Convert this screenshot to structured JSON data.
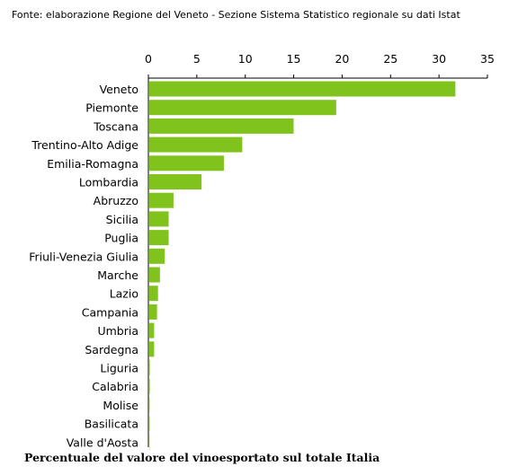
{
  "source_note": "Fonte: elaborazione Regione del Veneto - Sezione Sistema Statistico regionale su dati Istat",
  "caption": "Percentuale del valore del vinoesportato sul totale Italia",
  "colors": {
    "bar": "#7fc31c",
    "axis": "#000000"
  },
  "chart_data": {
    "type": "bar",
    "orientation": "horizontal",
    "title": "",
    "xlabel": "",
    "ylabel": "",
    "xlim": [
      0,
      35
    ],
    "xticks": [
      0,
      5,
      10,
      15,
      20,
      25,
      30,
      35
    ],
    "xaxis_position": "top",
    "grid": false,
    "categories": [
      "Veneto",
      "Piemonte",
      "Toscana",
      "Trentino-Alto Adige",
      "Emilia-Romagna",
      "Lombardia",
      "Abruzzo",
      "Sicilia",
      "Puglia",
      "Friuli-Venezia Giulia",
      "Marche",
      "Lazio",
      "Campania",
      "Umbria",
      "Sardegna",
      "Liguria",
      "Calabria",
      "Molise",
      "Basilicata",
      "Valle d'Aosta"
    ],
    "values": [
      31.6,
      19.3,
      14.9,
      9.6,
      7.7,
      5.4,
      2.5,
      2.0,
      2.0,
      1.6,
      1.1,
      0.9,
      0.8,
      0.5,
      0.5,
      0.05,
      0.05,
      0.03,
      0.03,
      0.02
    ]
  }
}
